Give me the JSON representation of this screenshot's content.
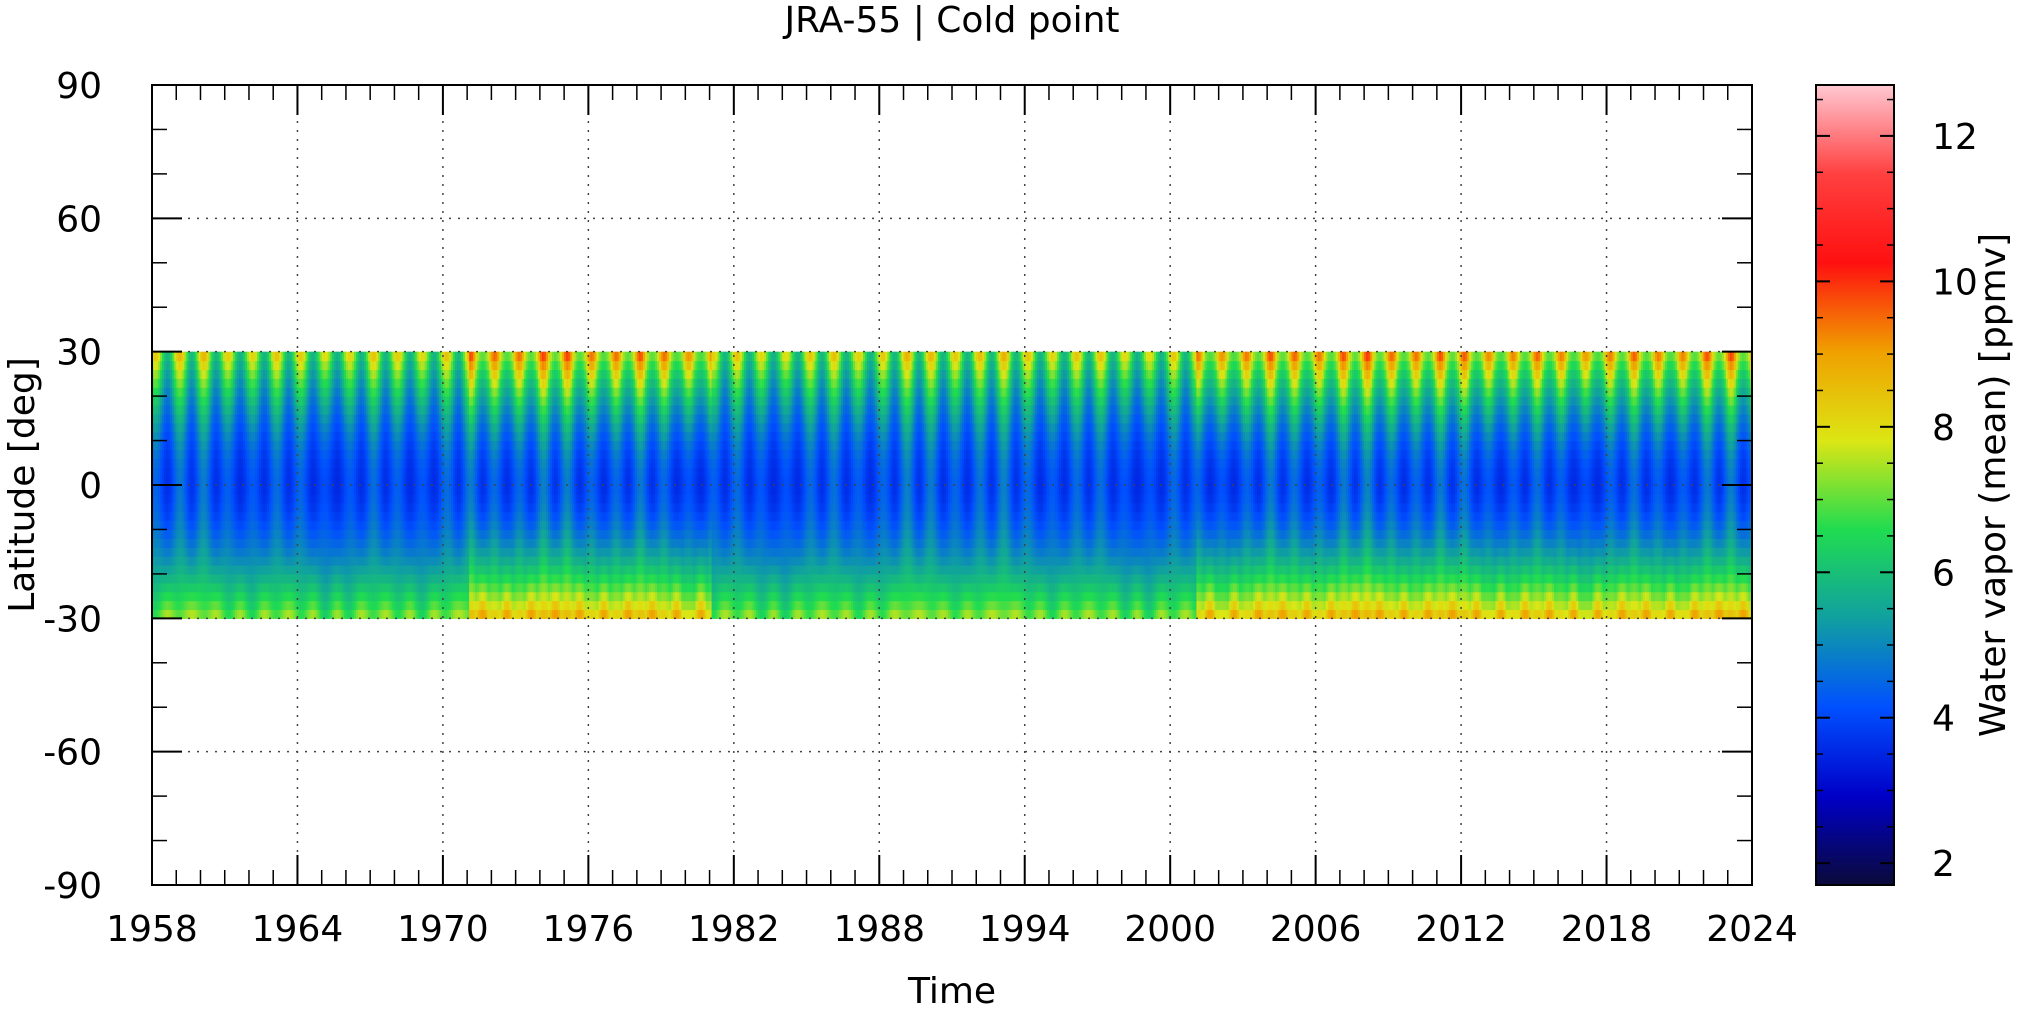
{
  "chart_data": {
    "type": "heatmap",
    "title": "JRA-55 | Cold point",
    "xlabel": "Time",
    "ylabel": "Latitude [deg]",
    "xlim": [
      1958,
      2024
    ],
    "ylim": [
      -90,
      90
    ],
    "x_ticks": [
      "1958",
      "1964",
      "1970",
      "1976",
      "1982",
      "1988",
      "1994",
      "2000",
      "2006",
      "2012",
      "2018",
      "2024"
    ],
    "y_ticks": [
      "90",
      "60",
      "30",
      "0",
      "-30",
      "-60",
      "-90"
    ],
    "grid": true,
    "data_extent": {
      "lat_min": -30,
      "lat_max": 30,
      "time_start": 1958,
      "time_end": 2024
    },
    "colorbar": {
      "label": "Water vapor (mean) [ppmv]",
      "range": [
        1.7,
        12.7
      ],
      "ticks": [
        "2",
        "4",
        "6",
        "8",
        "10",
        "12"
      ],
      "colors": [
        "#0a0a3a",
        "#0000c8",
        "#0050ff",
        "#10a0a0",
        "#20dc50",
        "#dce614",
        "#f0a000",
        "#ff1010",
        "#ff4040",
        "#ffc8d2"
      ]
    },
    "field_description": {
      "value_equator_min": 3.0,
      "value_edge_max": 10.5,
      "annual_cycle": true,
      "high_edge_periods": [
        [
          1971,
          1981
        ],
        [
          2001,
          2024
        ]
      ]
    }
  }
}
